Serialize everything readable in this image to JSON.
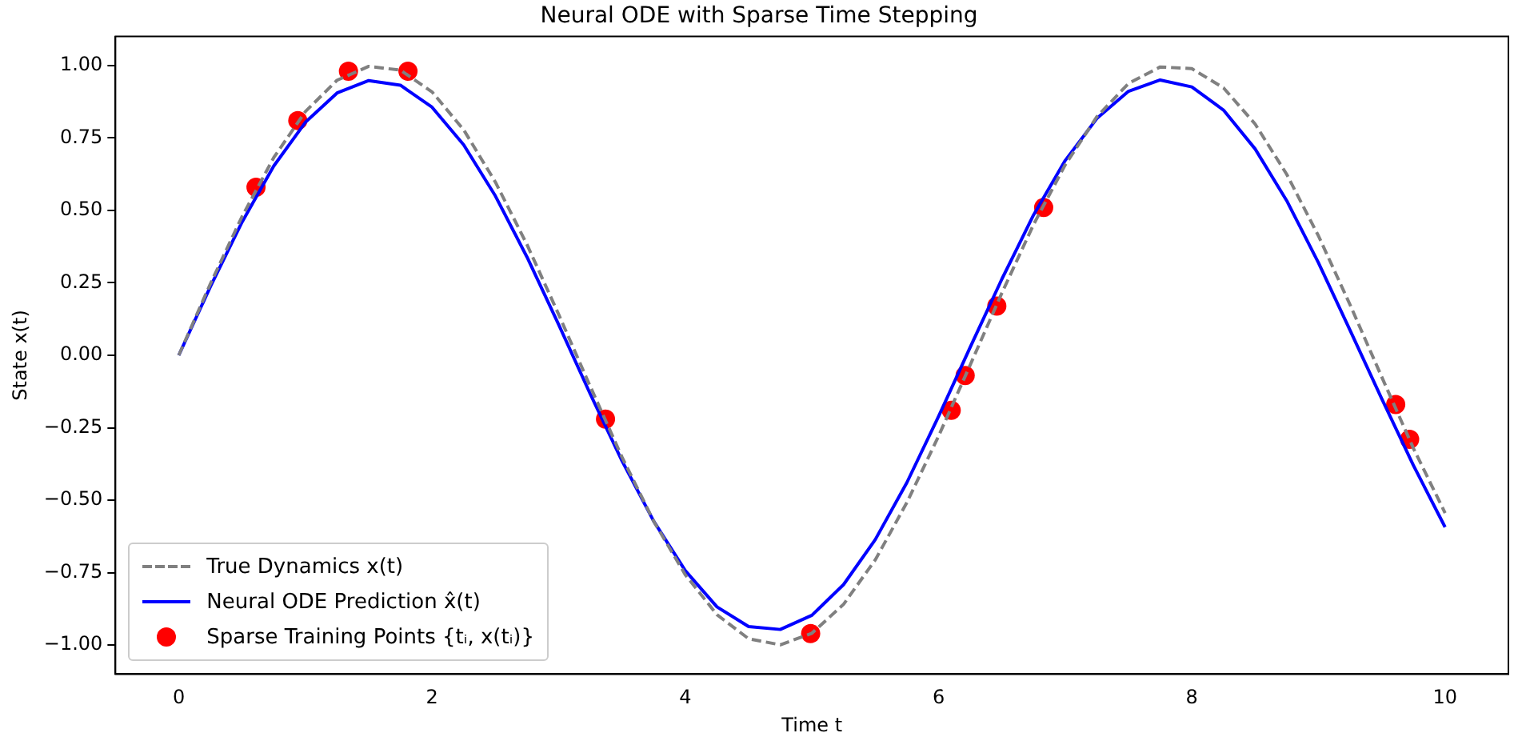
{
  "chart_data": {
    "type": "line",
    "title": "Neural ODE with Sparse Time Stepping",
    "xlabel": "Time t",
    "ylabel": "State x(t)",
    "xlim": [
      -0.5,
      10.5
    ],
    "xticks": [
      0,
      2,
      4,
      6,
      8,
      10
    ],
    "ylim": [
      -1.1,
      1.1
    ],
    "yticks": [
      {
        "value": -1,
        "label": "−1.00"
      },
      {
        "value": -0.75,
        "label": "−0.75"
      },
      {
        "value": -0.5,
        "label": "−0.50"
      },
      {
        "value": -0.25,
        "label": "−0.25"
      },
      {
        "value": 0,
        "label": "0.00"
      },
      {
        "value": 0.25,
        "label": "0.25"
      },
      {
        "value": 0.5,
        "label": "0.50"
      },
      {
        "value": 0.75,
        "label": "0.75"
      },
      {
        "value": 1,
        "label": "1.00"
      }
    ],
    "grid": false,
    "legend": "bottom left",
    "series": [
      {
        "name": "True Dynamics x(t)",
        "line_style": "dashed",
        "marker": "none",
        "color": "#808080",
        "x": [
          0,
          0.25,
          0.5,
          0.75,
          1,
          1.25,
          1.5,
          1.75,
          2,
          2.25,
          2.5,
          2.75,
          3,
          3.25,
          3.5,
          3.75,
          4,
          4.25,
          4.5,
          4.75,
          5,
          5.25,
          5.5,
          5.75,
          6,
          6.25,
          6.5,
          6.75,
          7,
          7.25,
          7.5,
          7.75,
          8,
          8.25,
          8.5,
          8.75,
          9,
          9.25,
          9.5,
          9.75,
          10
        ],
        "values": [
          0,
          0.247,
          0.479,
          0.682,
          0.841,
          0.949,
          0.997,
          0.984,
          0.909,
          0.778,
          0.598,
          0.382,
          0.141,
          -0.108,
          -0.351,
          -0.572,
          -0.757,
          -0.895,
          -0.978,
          -0.999,
          -0.959,
          -0.859,
          -0.706,
          -0.508,
          -0.279,
          -0.033,
          0.215,
          0.451,
          0.657,
          0.823,
          0.938,
          0.995,
          0.989,
          0.923,
          0.798,
          0.624,
          0.412,
          0.174,
          -0.075,
          -0.321,
          -0.544
        ]
      },
      {
        "name": "Neural ODE Prediction x̂(t)",
        "line_style": "solid",
        "marker": "none",
        "color": "#0000ff",
        "x": [
          0,
          0.25,
          0.5,
          0.75,
          1,
          1.25,
          1.5,
          1.75,
          2,
          2.25,
          2.5,
          2.75,
          3,
          3.25,
          3.5,
          3.75,
          4,
          4.25,
          4.5,
          4.75,
          5,
          5.25,
          5.5,
          5.75,
          6,
          6.25,
          6.5,
          6.75,
          7,
          7.25,
          7.5,
          7.75,
          8,
          8.25,
          8.5,
          8.75,
          9,
          9.25,
          9.5,
          9.75,
          10
        ],
        "values": [
          0,
          0.237,
          0.46,
          0.653,
          0.804,
          0.905,
          0.948,
          0.932,
          0.856,
          0.726,
          0.55,
          0.339,
          0.106,
          -0.134,
          -0.364,
          -0.572,
          -0.743,
          -0.868,
          -0.936,
          -0.946,
          -0.897,
          -0.791,
          -0.636,
          -0.439,
          -0.211,
          0.028,
          0.263,
          0.484,
          0.672,
          0.817,
          0.911,
          0.95,
          0.926,
          0.846,
          0.712,
          0.533,
          0.319,
          0.086,
          -0.15,
          -0.38,
          -0.593
        ]
      },
      {
        "name": "Sparse Training Points {tᵢ, x(tᵢ)}",
        "type": "scatter",
        "marker": "circle",
        "color": "#ff0000",
        "x": [
          0.61,
          0.94,
          1.34,
          1.81,
          3.37,
          4.99,
          6.1,
          6.21,
          6.46,
          6.83,
          9.61,
          9.72
        ],
        "values": [
          0.58,
          0.81,
          0.98,
          0.98,
          -0.22,
          -0.96,
          -0.19,
          -0.07,
          0.17,
          0.51,
          -0.17,
          -0.29
        ]
      }
    ]
  }
}
